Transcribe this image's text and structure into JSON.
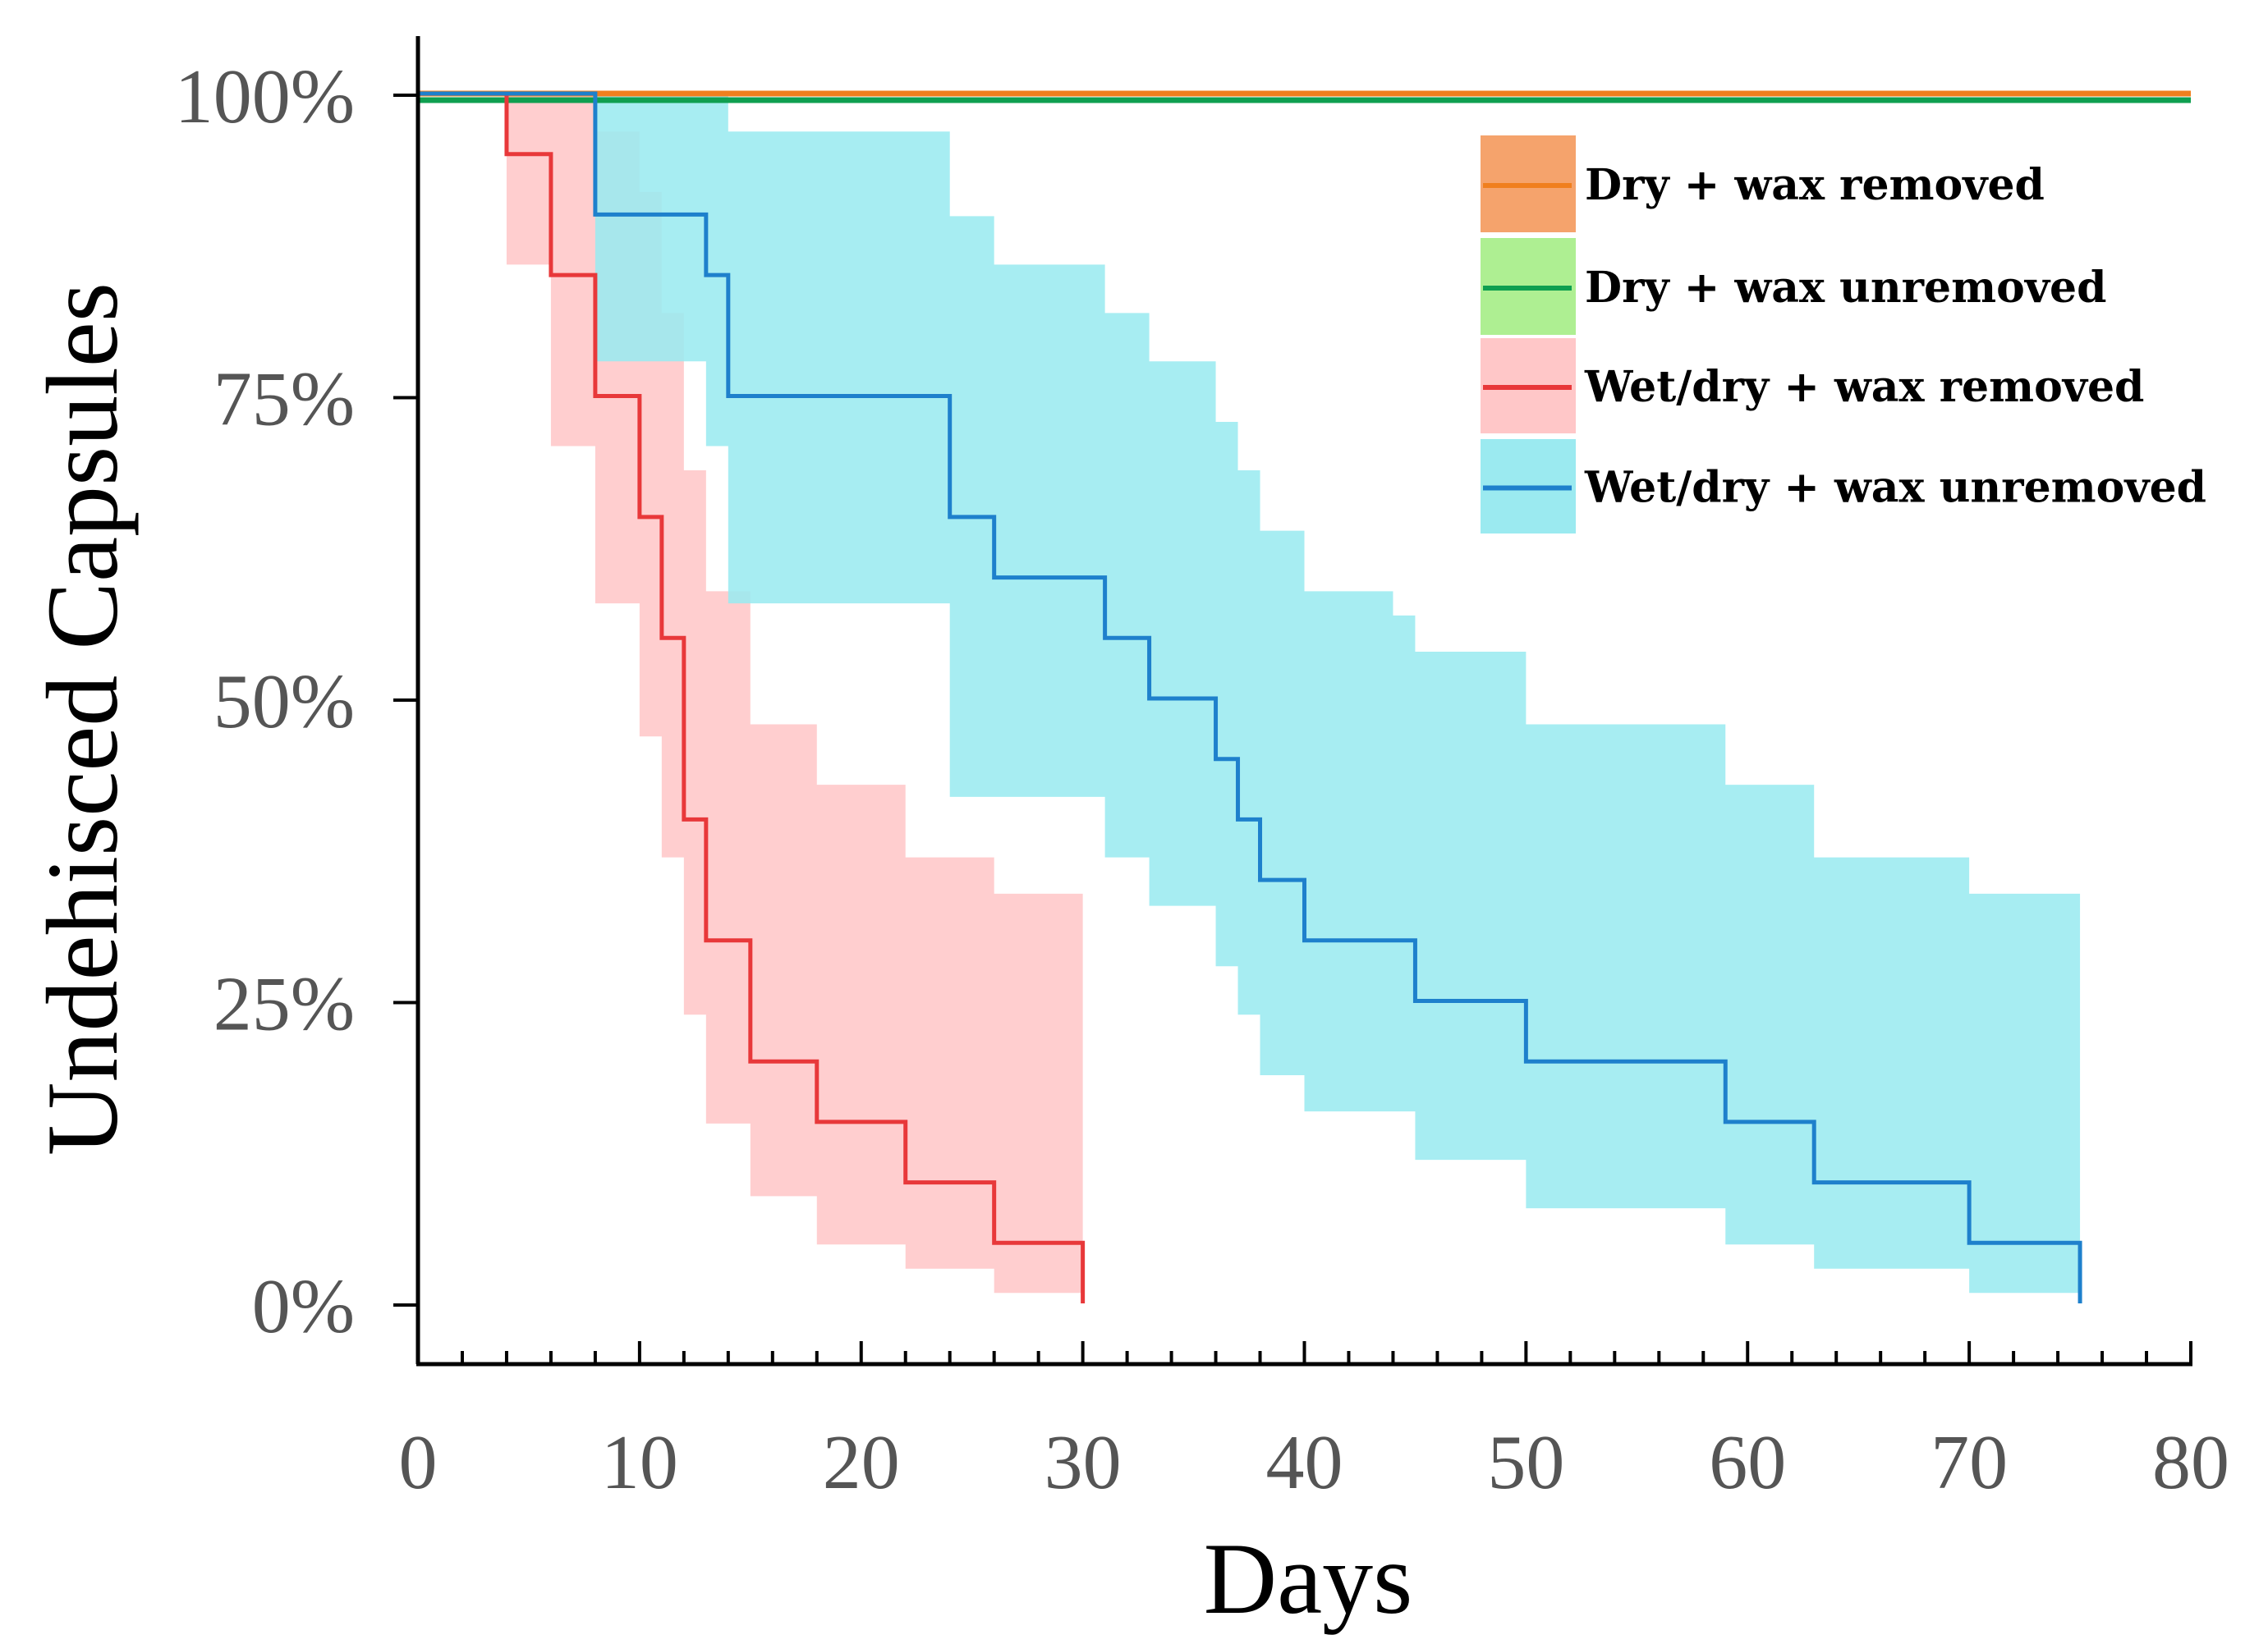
{
  "chart_data": {
    "type": "line",
    "subtype": "kaplan-meier step survival with confidence bands",
    "title": "",
    "xlabel": "Days",
    "ylabel": "Undehisced Capsules",
    "xlim": [
      0,
      80
    ],
    "ylim": [
      0,
      100
    ],
    "x_ticks": [
      "0",
      "10",
      "20",
      "30",
      "40",
      "50",
      "60",
      "70",
      "80"
    ],
    "y_ticks": [
      "0%",
      "25%",
      "50%",
      "75%",
      "100%"
    ],
    "legend_position": "top-right",
    "series": [
      {
        "name": "Dry + wax removed",
        "line_color": "#F07F1E",
        "band_color": "#F5A36C",
        "steps": [
          [
            0,
            100
          ],
          [
            80,
            100
          ]
        ],
        "band": []
      },
      {
        "name": "Dry + wax unremoved",
        "line_color": "#0F9F50",
        "band_color": "#AEEF92",
        "steps": [
          [
            0,
            100
          ],
          [
            80,
            100
          ]
        ],
        "band": []
      },
      {
        "name": "Wet/dry + wax removed",
        "line_color": "#E8383A",
        "band_color": "#FFC7C8",
        "steps": [
          [
            0,
            100
          ],
          [
            4,
            95
          ],
          [
            6,
            85
          ],
          [
            8,
            75
          ],
          [
            10,
            65
          ],
          [
            11,
            55
          ],
          [
            12,
            40
          ],
          [
            13,
            30
          ],
          [
            15,
            20
          ],
          [
            18,
            15
          ],
          [
            22,
            10
          ],
          [
            26,
            5
          ],
          [
            30,
            0
          ]
        ],
        "band": [
          [
            0,
            100,
            100
          ],
          [
            4,
            100,
            86
          ],
          [
            6,
            100,
            71
          ],
          [
            8,
            97,
            58
          ],
          [
            10,
            92,
            47
          ],
          [
            11,
            82,
            37
          ],
          [
            12,
            69,
            24
          ],
          [
            13,
            59,
            15
          ],
          [
            15,
            48,
            9
          ],
          [
            18,
            43,
            5
          ],
          [
            22,
            37,
            3
          ],
          [
            26,
            34,
            1
          ],
          [
            30,
            34,
            1
          ]
        ]
      },
      {
        "name": "Wet/dry + wax unremoved",
        "line_color": "#1E80CC",
        "band_color": "#9BEAF0",
        "steps": [
          [
            0,
            100
          ],
          [
            8,
            90
          ],
          [
            13,
            85
          ],
          [
            14,
            75
          ],
          [
            24,
            65
          ],
          [
            26,
            60
          ],
          [
            31,
            55
          ],
          [
            33,
            50
          ],
          [
            36,
            45
          ],
          [
            37,
            40
          ],
          [
            38,
            35
          ],
          [
            40,
            30
          ],
          [
            45,
            25
          ],
          [
            50,
            20
          ],
          [
            59,
            15
          ],
          [
            63,
            10
          ],
          [
            70,
            5
          ],
          [
            75,
            0
          ]
        ],
        "band": [
          [
            0,
            100,
            100
          ],
          [
            8,
            100,
            78
          ],
          [
            13,
            100,
            71
          ],
          [
            14,
            97,
            58
          ],
          [
            24,
            90,
            42
          ],
          [
            26,
            86,
            42
          ],
          [
            31,
            82,
            37
          ],
          [
            33,
            78,
            33
          ],
          [
            36,
            73,
            28
          ],
          [
            37,
            69,
            24
          ],
          [
            38,
            64,
            19
          ],
          [
            40,
            59,
            16
          ],
          [
            44,
            57,
            16
          ],
          [
            45,
            54,
            12
          ],
          [
            50,
            48,
            8
          ],
          [
            59,
            43,
            5
          ],
          [
            63,
            37,
            3
          ],
          [
            70,
            34,
            1
          ],
          [
            75,
            34,
            1
          ]
        ]
      }
    ]
  }
}
